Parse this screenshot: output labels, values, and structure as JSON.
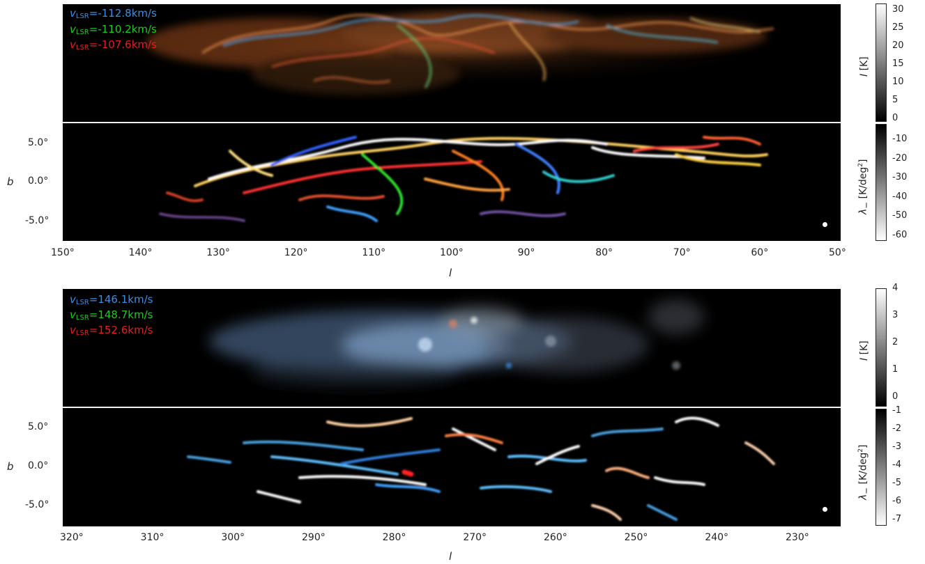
{
  "figure1": {
    "velocities": [
      {
        "prefix": "v",
        "sub": "LSR",
        "value": "=-112.8km/s",
        "color": "#3b8fe6"
      },
      {
        "prefix": "v",
        "sub": "LSR",
        "value": "=-110.2km/s",
        "color": "#1ecb1e"
      },
      {
        "prefix": "v",
        "sub": "LSR",
        "value": "=-107.6km/s",
        "color": "#e61e1e"
      }
    ],
    "x_ticks": [
      "150°",
      "140°",
      "130°",
      "120°",
      "110°",
      "100°",
      "90°",
      "80°",
      "70°",
      "60°",
      "50°"
    ],
    "y_ticks": [
      "5.0°",
      "0.0°",
      "-5.0°"
    ],
    "xlabel": "l",
    "ylabel": "b",
    "cbar_intensity": {
      "ticks": [
        "30",
        "25",
        "20",
        "15",
        "10",
        "5",
        "0"
      ],
      "label_var": "I",
      "label_unit": " [K]"
    },
    "cbar_lambda": {
      "ticks": [
        "-10",
        "-20",
        "-30",
        "-40",
        "-50",
        "-60"
      ],
      "label_var": "λ",
      "label_sub": "−",
      "label_unit": " [K/deg",
      "label_sup": "2",
      "label_end": "]"
    }
  },
  "figure2": {
    "velocities": [
      {
        "prefix": "v",
        "sub": "LSR",
        "value": "=146.1km/s",
        "color": "#3b8fe6"
      },
      {
        "prefix": "v",
        "sub": "LSR",
        "value": "=148.7km/s",
        "color": "#1ecb1e"
      },
      {
        "prefix": "v",
        "sub": "LSR",
        "value": "=152.6km/s",
        "color": "#e61e1e"
      }
    ],
    "x_ticks": [
      "320°",
      "310°",
      "300°",
      "290°",
      "280°",
      "270°",
      "260°",
      "250°",
      "240°",
      "230°"
    ],
    "y_ticks": [
      "5.0°",
      "0.0°",
      "-5.0°"
    ],
    "xlabel": "l",
    "ylabel": "b",
    "cbar_intensity": {
      "ticks": [
        "4",
        "3",
        "2",
        "1",
        "0"
      ],
      "label_var": "I",
      "label_unit": " [K]"
    },
    "cbar_lambda": {
      "ticks": [
        "-1",
        "-2",
        "-3",
        "-4",
        "-5",
        "-6",
        "-7"
      ],
      "label_var": "λ",
      "label_sub": "−",
      "label_unit": " [K/deg",
      "label_sup": "2",
      "label_end": "]"
    }
  }
}
